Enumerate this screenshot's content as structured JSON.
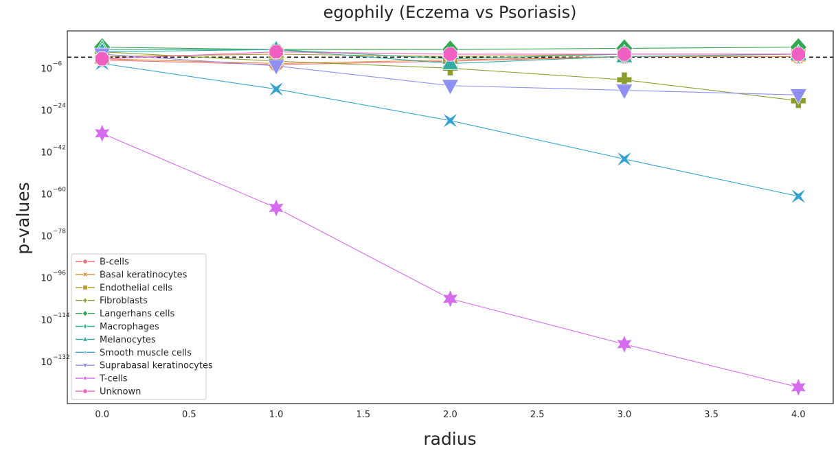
{
  "chart_data": {
    "type": "line",
    "title": "egophily (Eczema vs Psoriasis)",
    "xlabel": "radius",
    "ylabel": "p-values",
    "x": [
      0,
      1,
      2,
      3,
      4
    ],
    "xlim": [
      -0.2,
      4.2
    ],
    "x_ticks": [
      "0.0",
      "0.5",
      "1.0",
      "1.5",
      "2.0",
      "2.5",
      "3.0",
      "3.5",
      "4.0"
    ],
    "y_scale": "log",
    "ylim_log10": [
      -150,
      10
    ],
    "y_ticks": [
      {
        "base": "10",
        "exp": "−6",
        "log10": -6
      },
      {
        "base": "10",
        "exp": "−24",
        "log10": -24
      },
      {
        "base": "10",
        "exp": "−42",
        "log10": -42
      },
      {
        "base": "10",
        "exp": "−60",
        "log10": -60
      },
      {
        "base": "10",
        "exp": "−78",
        "log10": -78
      },
      {
        "base": "10",
        "exp": "−96",
        "log10": -96
      },
      {
        "base": "10",
        "exp": "−114",
        "log10": -114
      },
      {
        "base": "10",
        "exp": "−132",
        "log10": -132
      }
    ],
    "threshold_log10": -1.3,
    "grid": false,
    "legend_position": "lower-left",
    "series": [
      {
        "name": "B-cells",
        "color": "#e8747c",
        "marker": "circle",
        "log10_values": [
          -2.5,
          -4.5,
          -3,
          -1,
          -1
        ]
      },
      {
        "name": "Basal keratinocytes",
        "color": "#e08a3c",
        "marker": "x",
        "log10_values": [
          -2,
          -4,
          -2.5,
          -1,
          -1
        ]
      },
      {
        "name": "Endothelial cells",
        "color": "#b89a30",
        "marker": "square",
        "log10_values": [
          -1,
          0,
          -1,
          0,
          0
        ]
      },
      {
        "name": "Fibroblasts",
        "color": "#8a9e2e",
        "marker": "plus",
        "log10_values": [
          1,
          -3,
          -6,
          -11,
          -20
        ]
      },
      {
        "name": "Langerhans cells",
        "color": "#33a852",
        "marker": "diamond",
        "log10_values": [
          3,
          2,
          2,
          2.5,
          3
        ]
      },
      {
        "name": "Macrophages",
        "color": "#36b08c",
        "marker": "thin-diamond",
        "log10_values": [
          2,
          2,
          -2,
          0,
          0
        ]
      },
      {
        "name": "Melanocytes",
        "color": "#35aaa2",
        "marker": "triangle-up",
        "log10_values": [
          1,
          2,
          -4,
          -1,
          0
        ]
      },
      {
        "name": "Smooth muscle cells",
        "color": "#36a3cf",
        "marker": "x-box",
        "log10_values": [
          -4,
          -15,
          -28.5,
          -45,
          -61
        ]
      },
      {
        "name": "Suprabasal keratinocytes",
        "color": "#8e8ff0",
        "marker": "triangle-down",
        "log10_values": [
          0,
          -5,
          -13.5,
          -15.5,
          -17.5
        ]
      },
      {
        "name": "T-cells",
        "color": "#d66bf0",
        "marker": "star",
        "log10_values": [
          -34,
          -66,
          -105,
          -124.5,
          -143
        ]
      },
      {
        "name": "Unknown",
        "color": "#ef60c0",
        "marker": "octagon",
        "log10_values": [
          -2,
          1,
          0,
          0,
          0
        ]
      }
    ]
  }
}
